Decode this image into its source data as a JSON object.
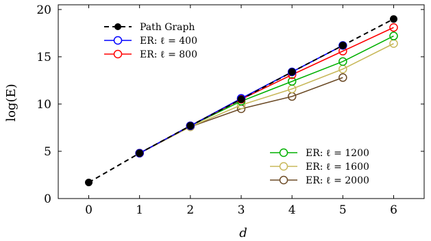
{
  "chart_data": {
    "type": "line",
    "xlabel": "d",
    "ylabel": "log(E)",
    "xlim": [
      -0.6,
      6.6
    ],
    "ylim": [
      0,
      20.5
    ],
    "xticks": [
      0,
      1,
      2,
      3,
      4,
      5,
      6
    ],
    "yticks": [
      0,
      5,
      10,
      15,
      20
    ],
    "legend_top": [
      "Path Graph",
      "ER: ℓ = 400",
      "ER: ℓ = 800"
    ],
    "legend_bottom": [
      "ER: ℓ = 1200",
      "ER: ℓ = 1600",
      "ER: ℓ = 2000"
    ],
    "series": [
      {
        "name": "Path Graph",
        "color": "#000000",
        "style": "dashed",
        "marker": "filled",
        "x": [
          0,
          1,
          2,
          3,
          4,
          5,
          6
        ],
        "values": [
          1.7,
          4.8,
          7.7,
          10.5,
          13.4,
          16.2,
          19.0
        ]
      },
      {
        "name": "ER: ℓ = 400",
        "color": "#0000ff",
        "style": "solid",
        "marker": "open",
        "x": [
          1,
          2,
          3,
          4,
          5
        ],
        "values": [
          4.8,
          7.7,
          10.6,
          13.4,
          16.2
        ]
      },
      {
        "name": "ER: ℓ = 800",
        "color": "#ff0000",
        "style": "solid",
        "marker": "open",
        "x": [
          1,
          2,
          3,
          4,
          5,
          6
        ],
        "values": [
          4.8,
          7.7,
          10.5,
          13.1,
          15.6,
          18.1
        ]
      },
      {
        "name": "ER: ℓ = 1200",
        "color": "#00b000",
        "style": "solid",
        "marker": "open",
        "x": [
          1,
          2,
          3,
          4,
          5,
          6
        ],
        "values": [
          4.8,
          7.7,
          10.3,
          12.4,
          14.5,
          17.2
        ]
      },
      {
        "name": "ER: ℓ = 1600",
        "color": "#c8b85a",
        "style": "solid",
        "marker": "open",
        "x": [
          1,
          2,
          3,
          4,
          5,
          6
        ],
        "values": [
          4.8,
          7.6,
          9.9,
          11.6,
          13.7,
          16.4
        ]
      },
      {
        "name": "ER: ℓ = 2000",
        "color": "#6b4a26",
        "style": "solid",
        "marker": "open",
        "x": [
          1,
          2,
          3,
          4,
          5
        ],
        "values": [
          4.8,
          7.6,
          9.5,
          10.8,
          12.8
        ]
      }
    ]
  }
}
